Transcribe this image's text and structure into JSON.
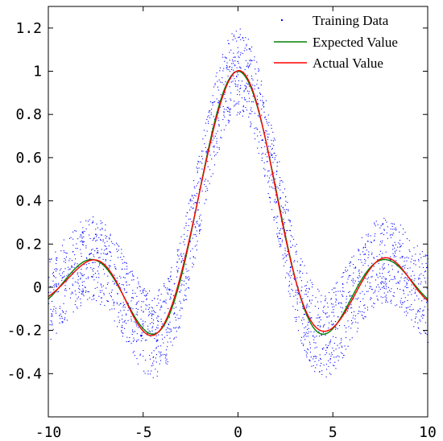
{
  "chart_data": {
    "type": "scatter",
    "xlim": [
      -10,
      10
    ],
    "ylim": [
      -0.6,
      1.3
    ],
    "x_ticks": [
      -10,
      -5,
      0,
      5,
      10
    ],
    "x_tick_labels": [
      "-10",
      "-5",
      "0",
      "5",
      "10"
    ],
    "y_ticks": [
      -0.4,
      -0.2,
      0,
      0.2,
      0.4,
      0.6,
      0.8,
      1.0,
      1.2
    ],
    "y_tick_labels": [
      "-0.4",
      "-0.2",
      "0",
      "0.2",
      "0.4",
      "0.6",
      "0.8",
      "1",
      "1.2"
    ],
    "grid": false,
    "legend_position": "top-right",
    "series": [
      {
        "name": "Training Data",
        "kind": "scatter",
        "color": "#0000ff",
        "function": "sin(x)/x plus uniform noise",
        "noise_range": [
          -0.2,
          0.2
        ],
        "num_points": 2500,
        "x_range": [
          -10,
          10
        ]
      },
      {
        "name": "Expected Value",
        "kind": "line",
        "color": "#008000",
        "function": "sin(x)/x",
        "x_range": [
          -10,
          10
        ]
      },
      {
        "name": "Actual Value",
        "kind": "line",
        "color": "#ff0000",
        "function": "approximation of sin(x)/x",
        "x_range": [
          -10,
          10
        ]
      }
    ]
  }
}
